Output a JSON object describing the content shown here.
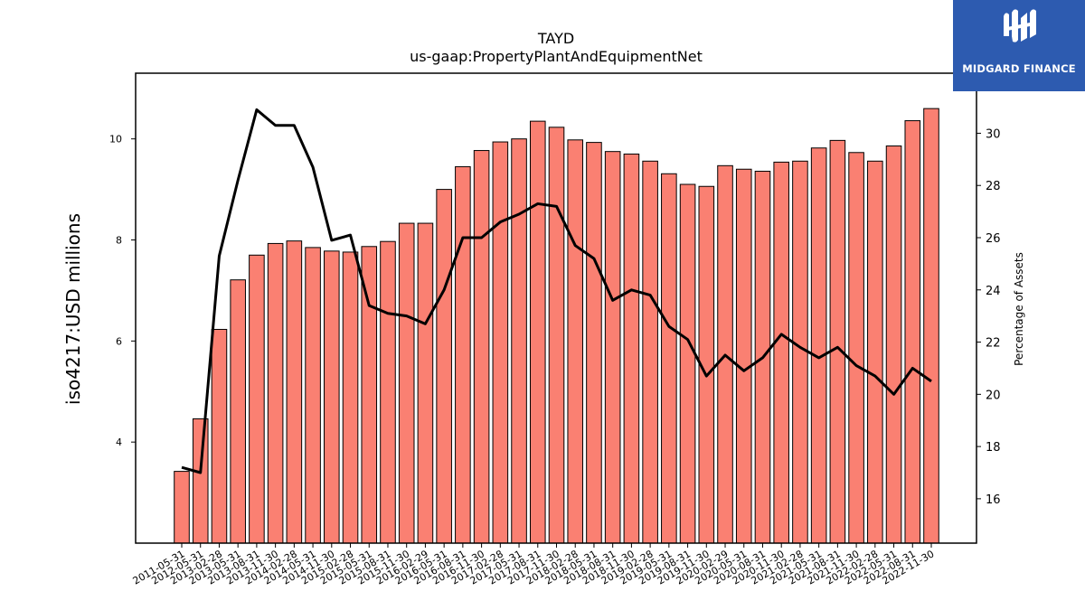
{
  "logo": {
    "text": "MIDGARD FINANCE",
    "background": "#2d5bb0"
  },
  "chart_data": {
    "type": "bar+line",
    "title": "TAYD",
    "subtitle": "us-gaap:PropertyPlantAndEquipmentNet",
    "ylabel_left": "iso4217:USD millions",
    "ylabel_right": "Percentage of Assets",
    "ylim_left": [
      2.0,
      11.3
    ],
    "yticks_left": [
      4,
      6,
      8,
      10
    ],
    "ylim_right": [
      14.3,
      32.3
    ],
    "yticks_right": [
      16,
      18,
      20,
      22,
      24,
      26,
      28,
      30
    ],
    "grid": false,
    "bar_color": "#fa8072",
    "line_color": "#000000",
    "categories": [
      "2011-05-31",
      "2012-05-31",
      "2013-02-28",
      "2013-05-31",
      "2013-08-31",
      "2013-11-30",
      "2014-02-28",
      "2014-05-31",
      "2014-11-30",
      "2015-02-28",
      "2015-05-31",
      "2015-08-31",
      "2015-11-30",
      "2016-02-29",
      "2016-05-31",
      "2016-08-31",
      "2016-11-30",
      "2017-02-28",
      "2017-05-31",
      "2017-08-31",
      "2017-11-30",
      "2018-02-28",
      "2018-05-31",
      "2018-08-31",
      "2018-11-30",
      "2019-02-28",
      "2019-05-31",
      "2019-08-31",
      "2019-11-30",
      "2020-02-29",
      "2020-05-31",
      "2020-08-31",
      "2020-11-30",
      "2021-02-28",
      "2021-05-31",
      "2021-08-31",
      "2021-11-30",
      "2022-02-28",
      "2022-05-31",
      "2022-08-31",
      "2022-11-30"
    ],
    "series": [
      {
        "kind": "bar",
        "values": [
          3.42,
          4.46,
          6.23,
          7.21,
          7.7,
          7.93,
          7.98,
          7.85,
          7.78,
          7.76,
          7.87,
          7.97,
          8.33,
          8.33,
          9.0,
          9.45,
          9.77,
          9.94,
          10.0,
          10.35,
          10.23,
          9.98,
          9.93,
          9.75,
          9.7,
          9.56,
          9.31,
          9.1,
          9.06,
          9.47,
          9.4,
          9.36,
          9.54,
          9.56,
          9.82,
          9.97,
          9.73,
          9.56,
          9.86,
          10.36,
          10.6
        ]
      },
      {
        "kind": "line",
        "values": [
          17.2,
          17.0,
          25.3,
          28.2,
          30.9,
          30.3,
          30.3,
          28.7,
          25.9,
          26.1,
          23.4,
          23.1,
          23.0,
          22.7,
          24.0,
          26.0,
          26.0,
          26.6,
          26.9,
          27.3,
          27.2,
          25.7,
          25.2,
          23.6,
          24.0,
          23.8,
          22.6,
          22.1,
          20.7,
          21.5,
          20.9,
          21.4,
          22.3,
          21.8,
          21.4,
          21.8,
          21.1,
          20.7,
          20.0,
          21.0,
          20.5
        ]
      }
    ]
  }
}
